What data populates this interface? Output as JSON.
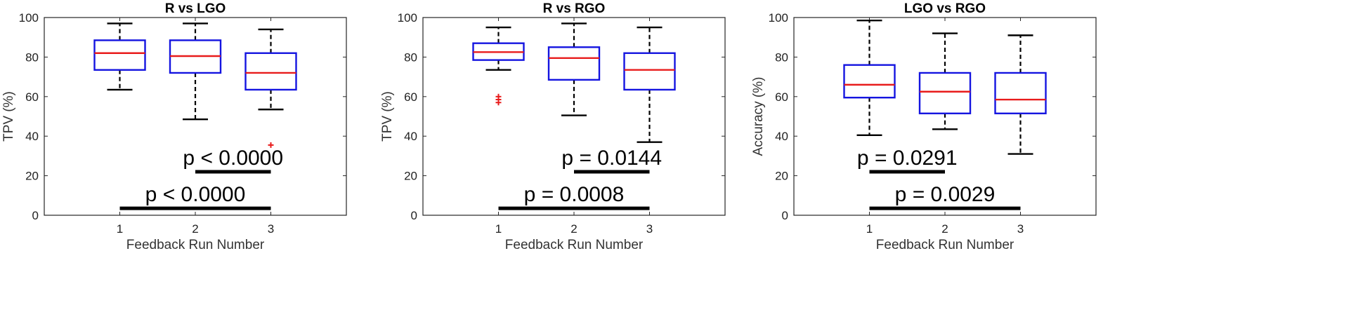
{
  "chart_data": [
    {
      "type": "box",
      "title": "R vs LGO",
      "xlabel": "Feedback Run Number",
      "ylabel": "TPV (%)",
      "ylim": [
        0,
        100
      ],
      "yticks": [
        "0",
        "20",
        "40",
        "60",
        "80",
        "100"
      ],
      "categories": [
        "1",
        "2",
        "3"
      ],
      "boxes": [
        {
          "q1": 73.5,
          "median": 82,
          "q3": 88.5,
          "whisker_low": 63.5,
          "whisker_high": 97,
          "outliers": []
        },
        {
          "q1": 72,
          "median": 80.5,
          "q3": 88.5,
          "whisker_low": 48.5,
          "whisker_high": 97,
          "outliers": []
        },
        {
          "q1": 63.5,
          "median": 72,
          "q3": 82,
          "whisker_low": 53.5,
          "whisker_high": 94,
          "outliers": [
            35.5
          ]
        }
      ],
      "comparisons": [
        {
          "from": 2,
          "to": 3,
          "y": 22,
          "label": "p < 0.0000"
        },
        {
          "from": 1,
          "to": 3,
          "y": 3.5,
          "label": "p < 0.0000"
        }
      ]
    },
    {
      "type": "box",
      "title": "R vs RGO",
      "xlabel": "Feedback Run Number",
      "ylabel": "TPV (%)",
      "ylim": [
        0,
        100
      ],
      "yticks": [
        "0",
        "20",
        "40",
        "60",
        "80",
        "100"
      ],
      "categories": [
        "1",
        "2",
        "3"
      ],
      "boxes": [
        {
          "q1": 78.5,
          "median": 82.5,
          "q3": 87,
          "whisker_low": 73.5,
          "whisker_high": 95,
          "outliers": [
            57,
            58.5,
            60
          ]
        },
        {
          "q1": 68.5,
          "median": 79.5,
          "q3": 85,
          "whisker_low": 50.5,
          "whisker_high": 97,
          "outliers": []
        },
        {
          "q1": 63.5,
          "median": 73.5,
          "q3": 82,
          "whisker_low": 37,
          "whisker_high": 95,
          "outliers": []
        }
      ],
      "comparisons": [
        {
          "from": 2,
          "to": 3,
          "y": 22,
          "label": "p = 0.0144"
        },
        {
          "from": 1,
          "to": 3,
          "y": 3.5,
          "label": "p = 0.0008"
        }
      ]
    },
    {
      "type": "box",
      "title": "LGO vs RGO",
      "xlabel": "Feedback Run Number",
      "ylabel": "Accuracy (%)",
      "ylim": [
        0,
        100
      ],
      "yticks": [
        "0",
        "20",
        "40",
        "60",
        "80",
        "100"
      ],
      "categories": [
        "1",
        "2",
        "3"
      ],
      "boxes": [
        {
          "q1": 59.5,
          "median": 66,
          "q3": 76,
          "whisker_low": 40.5,
          "whisker_high": 98.5,
          "outliers": []
        },
        {
          "q1": 51.5,
          "median": 62.5,
          "q3": 72,
          "whisker_low": 43.5,
          "whisker_high": 92,
          "outliers": []
        },
        {
          "q1": 51.5,
          "median": 58.5,
          "q3": 72,
          "whisker_low": 31,
          "whisker_high": 91,
          "outliers": []
        }
      ],
      "comparisons": [
        {
          "from": 1,
          "to": 2,
          "y": 22,
          "label": "p = 0.0291"
        },
        {
          "from": 1,
          "to": 3,
          "y": 3.5,
          "label": "p = 0.0029"
        }
      ]
    }
  ],
  "colors": {
    "box": "#1414e0",
    "median": "#e81b1b",
    "whisker": "#000000",
    "outlier": "#e81b1b",
    "comparison_bar": "#000000"
  }
}
